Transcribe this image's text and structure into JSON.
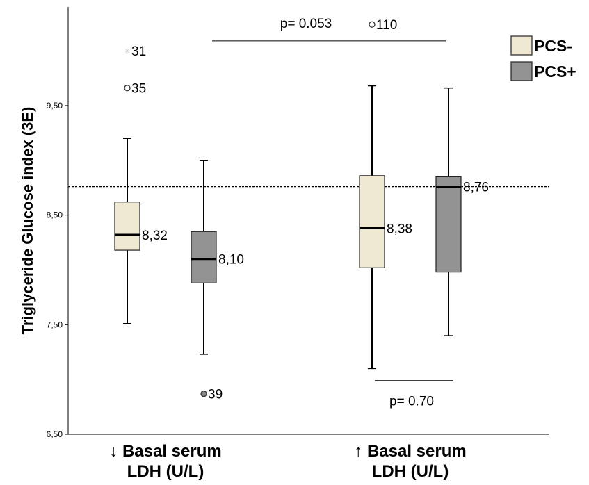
{
  "chart_data": {
    "type": "box",
    "ylabel": "Triglyceride Glucose index (3E)",
    "ylim": [
      6.5,
      10.4
    ],
    "yticks": [
      6.5,
      7.5,
      8.5,
      9.5
    ],
    "ytick_labels": [
      "6,50",
      "7,50",
      "8,50",
      "9,50"
    ],
    "categories": [
      "↓ Basal serum LDH (U/L)",
      "↑ Basal serum LDH (U/L)"
    ],
    "category_lines": [
      [
        "↓ Basal serum",
        "LDH (U/L)"
      ],
      [
        "↑ Basal serum",
        "LDH (U/L)"
      ]
    ],
    "reference_line": 8.76,
    "series": [
      {
        "name": "PCS-",
        "color": "#efe9d3",
        "boxes": [
          {
            "category": 0,
            "whisker_low": 7.51,
            "q1": 8.18,
            "median": 8.32,
            "q3": 8.62,
            "whisker_high": 9.2,
            "median_label": "8,32",
            "outliers": [
              {
                "y": 10.0,
                "label": "31",
                "marker": "star"
              },
              {
                "y": 9.66,
                "label": "35",
                "marker": "circle"
              }
            ]
          },
          {
            "category": 1,
            "whisker_low": 7.1,
            "q1": 8.02,
            "median": 8.38,
            "q3": 8.86,
            "whisker_high": 9.68,
            "median_label": "8,38",
            "outliers": [
              {
                "y": 10.24,
                "label": "110",
                "marker": "circle"
              }
            ]
          }
        ]
      },
      {
        "name": "PCS+",
        "color": "#939393",
        "boxes": [
          {
            "category": 0,
            "whisker_low": 7.23,
            "q1": 7.88,
            "median": 8.1,
            "q3": 8.35,
            "whisker_high": 9.0,
            "median_label": "8,10",
            "outliers": [
              {
                "y": 6.87,
                "label": "39",
                "marker": "circle-filled"
              }
            ]
          },
          {
            "category": 1,
            "whisker_low": 7.4,
            "q1": 7.98,
            "median": 8.76,
            "q3": 8.85,
            "whisker_high": 9.66,
            "median_label": "8,76",
            "outliers": []
          }
        ]
      }
    ],
    "annotations": [
      {
        "text": "p= 0.053",
        "y": 10.09,
        "position": "top"
      },
      {
        "text": "p= 0.70",
        "y": 6.99,
        "position": "bottom"
      }
    ],
    "legend": {
      "position": "top-right",
      "entries": [
        "PCS-",
        "PCS+"
      ]
    }
  }
}
